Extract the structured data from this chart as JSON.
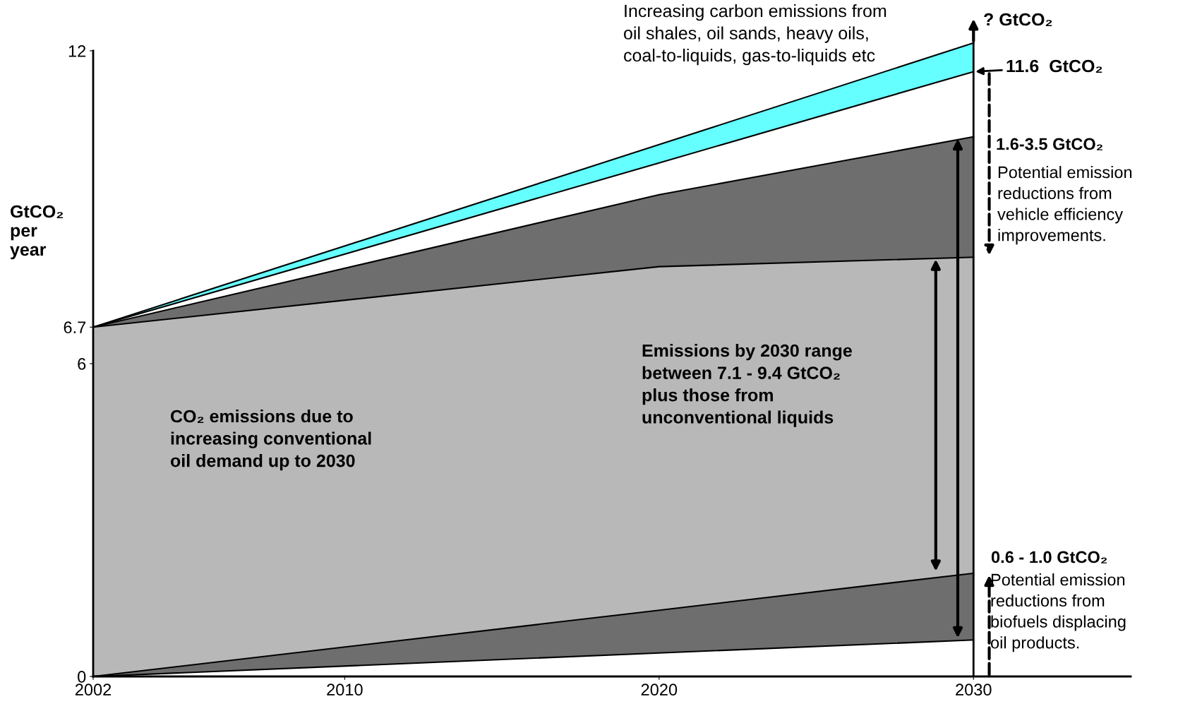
{
  "chart_data": {
    "type": "area",
    "stacked": true,
    "ylabel": "GtCO₂\nper\nyear",
    "x": [
      2002,
      2020,
      2030
    ],
    "series": [
      {
        "color": "#ffffff",
        "values": [
          0,
          0.45,
          0.7
        ]
      },
      {
        "color": "#6e6e6e",
        "values": [
          0,
          0.82,
          1.28
        ]
      },
      {
        "color": "#b8b8b8",
        "values": [
          6.7,
          6.59,
          6.06
        ]
      },
      {
        "color": "#6e6e6e",
        "values": [
          0,
          1.38,
          2.31
        ]
      },
      {
        "color": "#ffffff",
        "values": [
          0,
          0.61,
          1.25
        ]
      },
      {
        "color": "#66ffff",
        "values": [
          0,
          0.35,
          0.55
        ]
      }
    ],
    "xlim": [
      2002,
      2035
    ],
    "xticks": [
      2002,
      2010,
      2020,
      2030
    ],
    "ylim": [
      0,
      12.5
    ],
    "yticks": [
      0,
      6,
      6.7,
      12
    ],
    "ref_lines": [
      {
        "axis": "x",
        "value": 2030,
        "color": "#000000"
      }
    ],
    "grid": false,
    "legend": false,
    "annotations": [
      "Increasing carbon emissions from\noil shales, oil sands, heavy oils,\ncoal-to-liquids, gas-to-liquids etc",
      "? GtCO₂",
      {
        "text": "11.6  GtCO₂",
        "x": 2030,
        "y": 11.6
      },
      "1.6-3.5 GtCO₂",
      "Potential emission\nreductions from\nvehicle efficiency\nimprovements.",
      "0.6 - 1.0 GtCO₂",
      "Potential emission\nreductions from\nbiofuels displacing\noil products.",
      "Emissions by 2030 range\nbetween 7.1 - 9.4 GtCO₂\nplus those from\nunconventional liquids",
      "CO₂ emissions due to\nincreasing conventional\noil demand up to 2030"
    ]
  }
}
